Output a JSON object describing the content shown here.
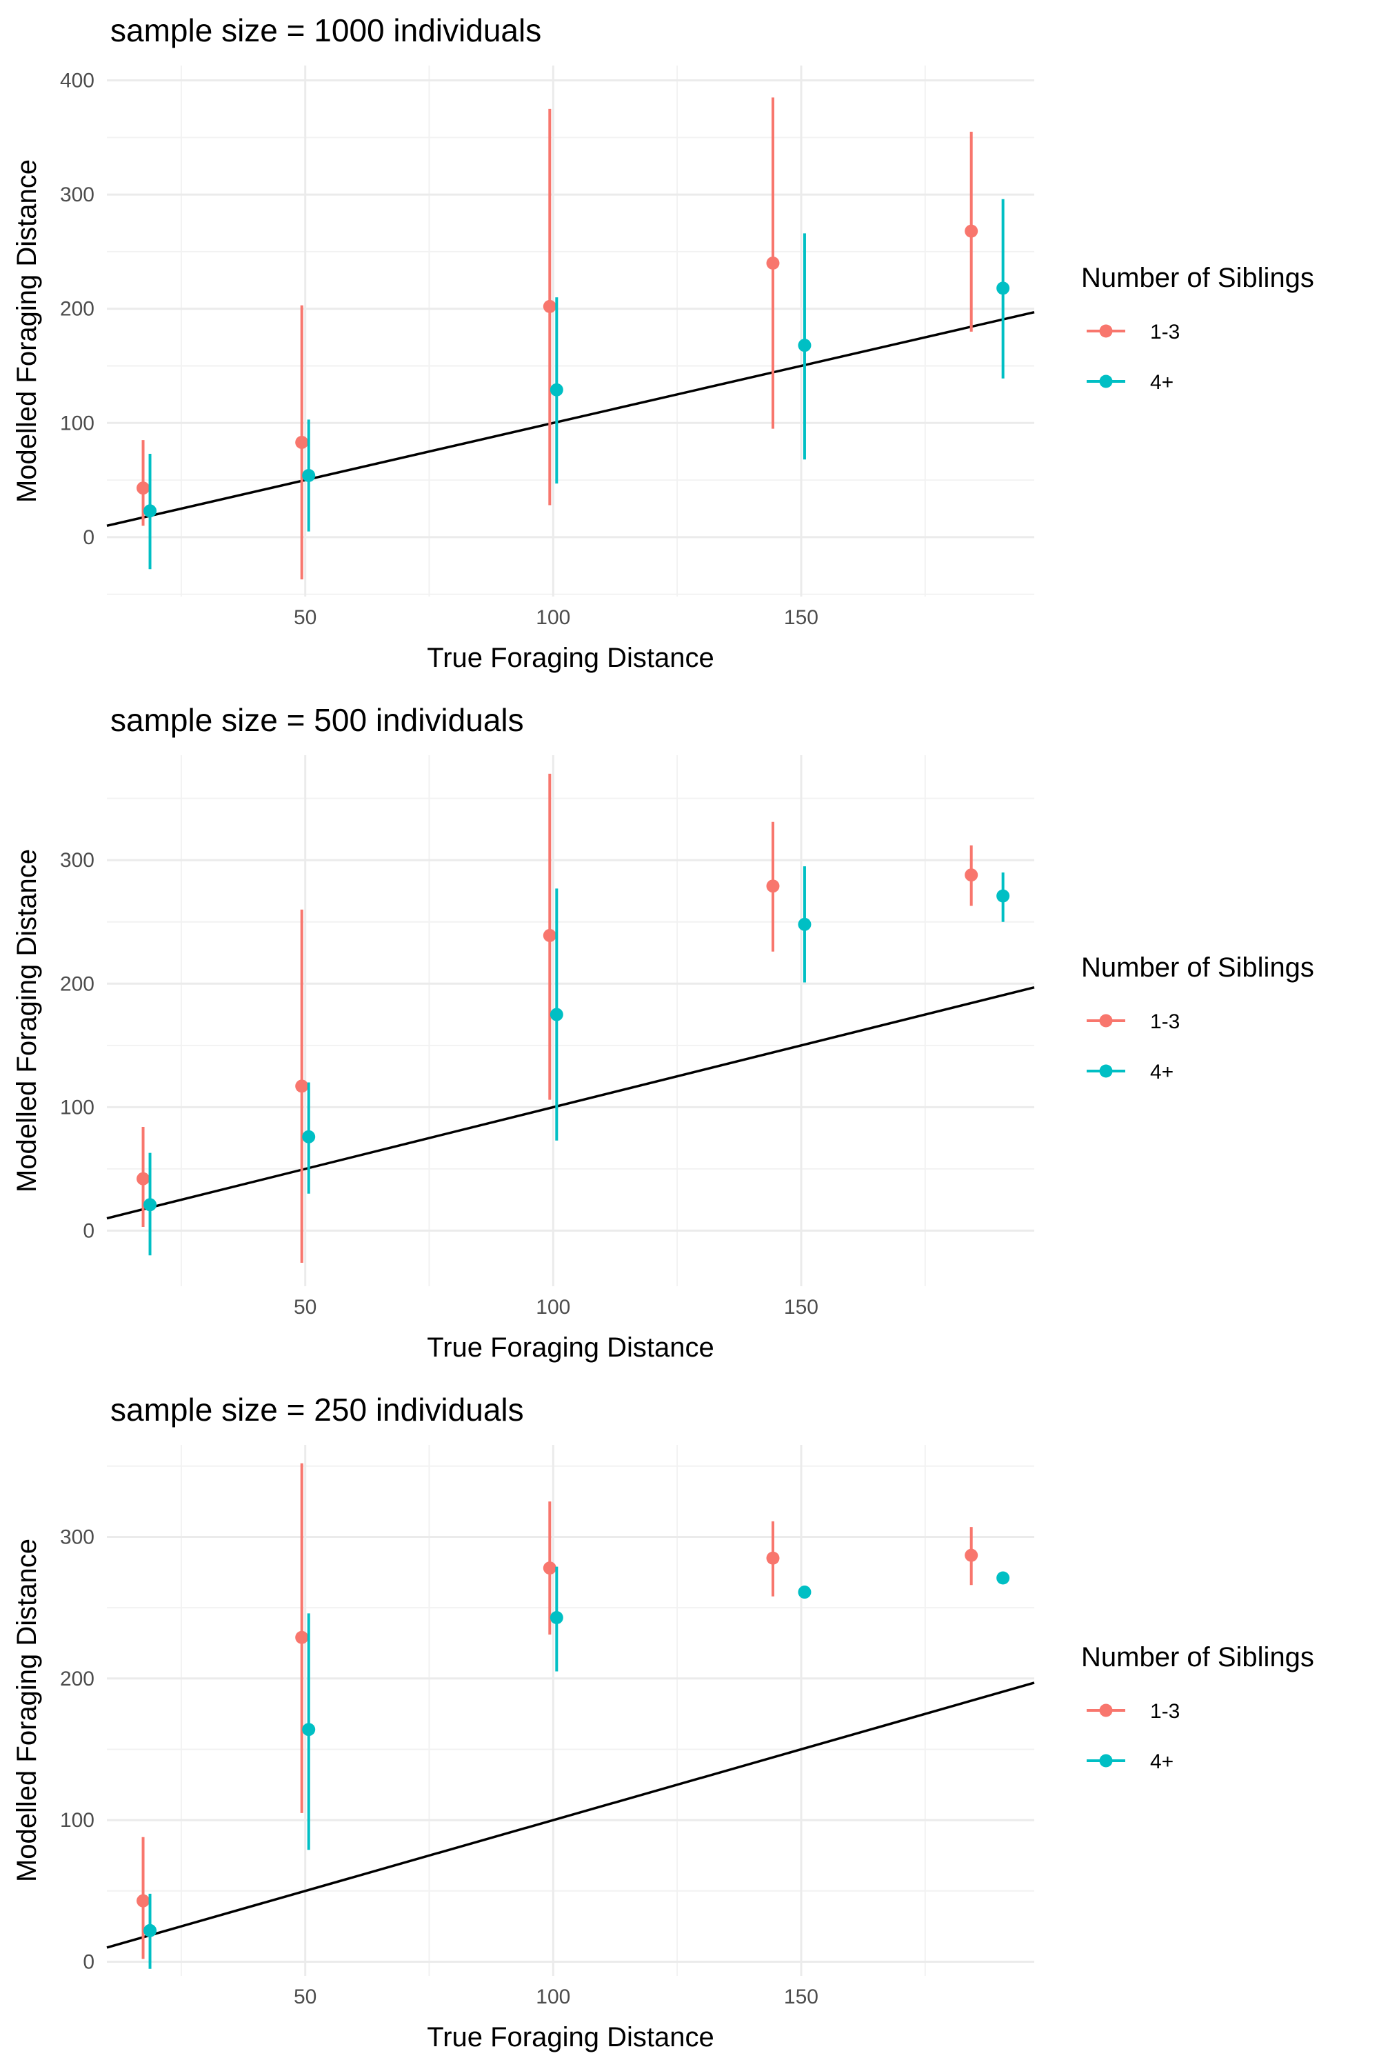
{
  "legend": {
    "title": "Number of Siblings",
    "items": [
      {
        "label": "1-3",
        "color": "#F8766D"
      },
      {
        "label": "4+",
        "color": "#00BFC4"
      }
    ]
  },
  "colors": {
    "group_1_3": "#F8766D",
    "group_4plus": "#00BFC4",
    "reference_line": "#000000",
    "grid": "#EBEBEB"
  },
  "chart_data": [
    {
      "type": "scatter",
      "title": "sample size = 1000 individuals",
      "xlabel": "True Foraging Distance",
      "ylabel": "Modelled Foraging Distance",
      "xlim": [
        10,
        197
      ],
      "ylim": [
        -52,
        413
      ],
      "xticks": [
        50,
        100,
        150
      ],
      "yticks": [
        0,
        100,
        200,
        300,
        400
      ],
      "reference_line": {
        "slope": 1,
        "intercept": 0
      },
      "series": [
        {
          "name": "1-3",
          "points": [
            {
              "x": 18,
              "y": 43,
              "lo": 10,
              "hi": 85
            },
            {
              "x": 50,
              "y": 83,
              "lo": -37,
              "hi": 203
            },
            {
              "x": 100,
              "y": 202,
              "lo": 28,
              "hi": 375
            },
            {
              "x": 145,
              "y": 240,
              "lo": 95,
              "hi": 385
            },
            {
              "x": 185,
              "y": 268,
              "lo": 180,
              "hi": 355
            }
          ]
        },
        {
          "name": "4+",
          "points": [
            {
              "x": 18,
              "y": 23,
              "lo": -28,
              "hi": 73
            },
            {
              "x": 50,
              "y": 54,
              "lo": 5,
              "hi": 103
            },
            {
              "x": 100,
              "y": 129,
              "lo": 47,
              "hi": 210
            },
            {
              "x": 150,
              "y": 168,
              "lo": 68,
              "hi": 266
            },
            {
              "x": 190,
              "y": 218,
              "lo": 139,
              "hi": 296
            }
          ]
        }
      ]
    },
    {
      "type": "scatter",
      "title": "sample size = 500 individuals",
      "xlabel": "True Foraging Distance",
      "ylabel": "Modelled Foraging Distance",
      "xlim": [
        10,
        197
      ],
      "ylim": [
        -45,
        385
      ],
      "xticks": [
        50,
        100,
        150
      ],
      "yticks": [
        0,
        100,
        200,
        300
      ],
      "reference_line": {
        "slope": 1,
        "intercept": 0
      },
      "series": [
        {
          "name": "1-3",
          "points": [
            {
              "x": 18,
              "y": 42,
              "lo": 3,
              "hi": 84
            },
            {
              "x": 50,
              "y": 117,
              "lo": -26,
              "hi": 260
            },
            {
              "x": 100,
              "y": 239,
              "lo": 106,
              "hi": 370
            },
            {
              "x": 145,
              "y": 279,
              "lo": 226,
              "hi": 331
            },
            {
              "x": 185,
              "y": 288,
              "lo": 263,
              "hi": 312
            }
          ]
        },
        {
          "name": "4+",
          "points": [
            {
              "x": 18,
              "y": 21,
              "lo": -20,
              "hi": 63
            },
            {
              "x": 50,
              "y": 76,
              "lo": 30,
              "hi": 120
            },
            {
              "x": 100,
              "y": 175,
              "lo": 73,
              "hi": 277
            },
            {
              "x": 150,
              "y": 248,
              "lo": 201,
              "hi": 295
            },
            {
              "x": 190,
              "y": 271,
              "lo": 250,
              "hi": 290
            }
          ]
        }
      ]
    },
    {
      "type": "scatter",
      "title": "sample size = 250 individuals",
      "xlabel": "True Foraging Distance",
      "ylabel": "Modelled Foraging Distance",
      "xlim": [
        10,
        197
      ],
      "ylim": [
        -10,
        365
      ],
      "xticks": [
        50,
        100,
        150
      ],
      "yticks": [
        0,
        100,
        200,
        300
      ],
      "reference_line": {
        "slope": 1,
        "intercept": 0
      },
      "series": [
        {
          "name": "1-3",
          "points": [
            {
              "x": 18,
              "y": 43,
              "lo": 2,
              "hi": 88
            },
            {
              "x": 50,
              "y": 229,
              "lo": 105,
              "hi": 352
            },
            {
              "x": 100,
              "y": 278,
              "lo": 231,
              "hi": 325
            },
            {
              "x": 145,
              "y": 285,
              "lo": 258,
              "hi": 311
            },
            {
              "x": 185,
              "y": 287,
              "lo": 266,
              "hi": 307
            }
          ]
        },
        {
          "name": "4+",
          "points": [
            {
              "x": 18,
              "y": 22,
              "lo": -5,
              "hi": 48
            },
            {
              "x": 50,
              "y": 164,
              "lo": 79,
              "hi": 246
            },
            {
              "x": 100,
              "y": 243,
              "lo": 205,
              "hi": 279
            },
            {
              "x": 150,
              "y": 261,
              "lo": 261,
              "hi": 261
            },
            {
              "x": 190,
              "y": 271,
              "lo": 271,
              "hi": 271
            }
          ]
        }
      ]
    }
  ]
}
